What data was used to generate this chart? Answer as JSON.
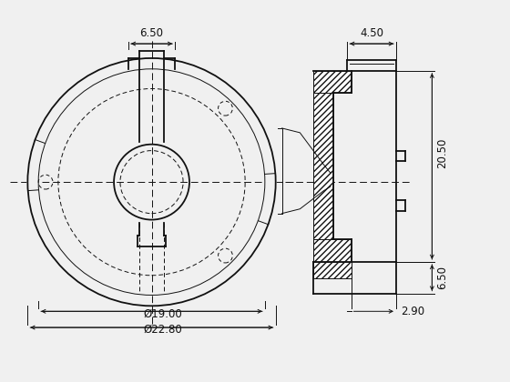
{
  "bg_color": "#f0f0f0",
  "line_color": "#111111",
  "dim_650_top": "6.50",
  "dim_1900": "Ø19.00",
  "dim_2280": "Ø22.80",
  "dim_450": "4.50",
  "dim_2050": "20.50",
  "dim_650_right": "6.50",
  "dim_290": "2.90"
}
